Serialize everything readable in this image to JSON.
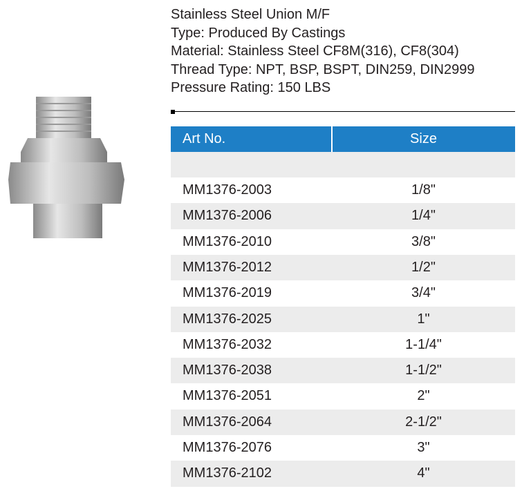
{
  "product": {
    "specs": [
      "Stainless Steel Union M/F",
      "Type: Produced By Castings",
      "Material: Stainless Steel CF8M(316), CF8(304)",
      "Thread Type: NPT, BSP, BSPT, DIN259, DIN2999",
      "Pressure Rating: 150 LBS"
    ]
  },
  "table": {
    "headers": [
      "Art No.",
      "Size"
    ],
    "rows": [
      [
        "MM1376-2003",
        "1/8\""
      ],
      [
        "MM1376-2006",
        "1/4\""
      ],
      [
        "MM1376-2010",
        "3/8\""
      ],
      [
        "MM1376-2012",
        "1/2\""
      ],
      [
        "MM1376-2019",
        "3/4\""
      ],
      [
        "MM1376-2025",
        "1\""
      ],
      [
        "MM1376-2032",
        "1-1/4\""
      ],
      [
        "MM1376-2038",
        "1-1/2\""
      ],
      [
        "MM1376-2051",
        "2\""
      ],
      [
        "MM1376-2064",
        "2-1/2\""
      ],
      [
        "MM1376-2076",
        "3\""
      ],
      [
        "MM1376-2102",
        "4\""
      ]
    ]
  }
}
